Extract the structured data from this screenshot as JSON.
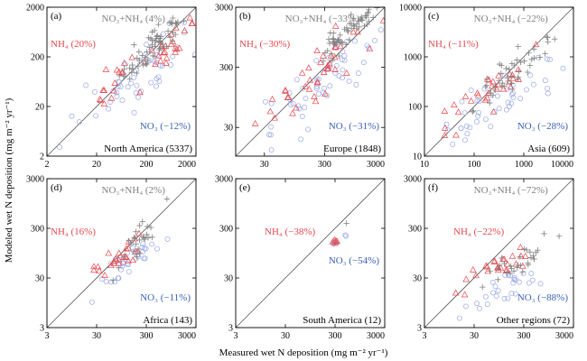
{
  "figure": {
    "y_axis_label": "Modeled wet N deposition (mg m⁻² yr⁻¹)",
    "x_axis_label": "Measured wet N deposition (mg m⁻² yr⁻¹)"
  },
  "colors": {
    "nh4": "#e8474c",
    "no3": "#3a5fb8",
    "sum": "#808080",
    "no3_marker": "#9aa8e6",
    "axis": "#000000",
    "one_to_one": "#555555"
  },
  "chart_data": [
    {
      "type": "scatter",
      "panel": "(a)",
      "region": "North America (5337)",
      "scale": "log",
      "xlim": [
        2,
        2000
      ],
      "ylim": [
        2,
        2000
      ],
      "xticks": [
        "2",
        "20",
        "200",
        "2000"
      ],
      "yticks": [
        "2",
        "20",
        "200",
        "2000"
      ],
      "one_to_one_line": true,
      "series": [
        {
          "name": "NO₃+NH₄",
          "bias": "(4%)",
          "marker": "plus",
          "label_position": "top",
          "clouds": [
            {
              "x_center": 300,
              "y_center": 350,
              "x_spread": 1.9,
              "y_spread": 1.9,
              "count": 60
            }
          ]
        },
        {
          "name": "NH₄",
          "bias": "(20%)",
          "marker": "triangle",
          "label_position": "upper-left",
          "clouds": [
            {
              "x_center": 180,
              "y_center": 150,
              "x_spread": 3.5,
              "y_spread": 2.5,
              "count": 40
            }
          ]
        },
        {
          "name": "NO₃",
          "bias": "(−12%)",
          "marker": "circle",
          "label_position": "lower-right",
          "clouds": [
            {
              "x_center": 120,
              "y_center": 70,
              "x_spread": 4.5,
              "y_spread": 3.2,
              "count": 55
            }
          ]
        }
      ]
    },
    {
      "type": "scatter",
      "panel": "(b)",
      "region": "Europe (1848)",
      "scale": "log",
      "xlim": [
        10,
        3000
      ],
      "ylim": [
        10,
        3000
      ],
      "xticks": [
        "30",
        "300",
        "3000"
      ],
      "yticks": [
        "30",
        "300",
        "3000"
      ],
      "one_to_one_line": true,
      "series": [
        {
          "name": "NO₃+NH₄",
          "bias": "(−33%)",
          "marker": "plus",
          "label_position": "top",
          "clouds": [
            {
              "x_center": 700,
              "y_center": 1100,
              "x_spread": 1.8,
              "y_spread": 1.8,
              "count": 60
            }
          ]
        },
        {
          "name": "NH₄",
          "bias": "(−30%)",
          "marker": "triangle",
          "label_position": "upper-left",
          "clouds": [
            {
              "x_center": 250,
              "y_center": 250,
              "x_spread": 2.8,
              "y_spread": 2.5,
              "count": 40
            }
          ]
        },
        {
          "name": "NO₃",
          "bias": "(−31%)",
          "marker": "circle",
          "label_position": "lower-right",
          "clouds": [
            {
              "x_center": 250,
              "y_center": 140,
              "x_spread": 3.2,
              "y_spread": 3.0,
              "count": 55
            }
          ]
        }
      ]
    },
    {
      "type": "scatter",
      "panel": "(c)",
      "region": "Asia (609)",
      "scale": "log",
      "xlim": [
        10,
        10000
      ],
      "ylim": [
        10,
        10000
      ],
      "xticks": [
        "10",
        "100",
        "1000",
        "10000"
      ],
      "yticks": [
        "10",
        "100",
        "1000",
        "10000"
      ],
      "one_to_one_line": true,
      "series": [
        {
          "name": "NO₃+NH₄",
          "bias": "(−22%)",
          "marker": "plus",
          "label_position": "top",
          "clouds": [
            {
              "x_center": 700,
              "y_center": 500,
              "x_spread": 2.5,
              "y_spread": 2.2,
              "count": 45
            }
          ]
        },
        {
          "name": "NH₄",
          "bias": "(−11%)",
          "marker": "triangle",
          "label_position": "upper-left",
          "clouds": [
            {
              "x_center": 300,
              "y_center": 250,
              "x_spread": 3.5,
              "y_spread": 2.5,
              "count": 30
            }
          ]
        },
        {
          "name": "NO₃",
          "bias": "(−28%)",
          "marker": "circle",
          "label_position": "lower-right",
          "clouds": [
            {
              "x_center": 250,
              "y_center": 120,
              "x_spread": 4.0,
              "y_spread": 2.5,
              "count": 45
            }
          ]
        }
      ]
    },
    {
      "type": "scatter",
      "panel": "(d)",
      "region": "Africa (143)",
      "scale": "log",
      "xlim": [
        3,
        3000
      ],
      "ylim": [
        3,
        3000
      ],
      "xticks": [
        "3",
        "30",
        "300",
        "3000"
      ],
      "yticks": [
        "3",
        "30",
        "300",
        "3000"
      ],
      "one_to_one_line": true,
      "series": [
        {
          "name": "NO₃+NH₄",
          "bias": "(2%)",
          "marker": "plus",
          "label_position": "top",
          "clouds": [
            {
              "x_center": 250,
              "y_center": 220,
              "x_spread": 1.8,
              "y_spread": 2.2,
              "count": 25
            }
          ]
        },
        {
          "name": "NH₄",
          "bias": "(16%)",
          "marker": "triangle",
          "label_position": "upper-left",
          "clouds": [
            {
              "x_center": 90,
              "y_center": 80,
              "x_spread": 1.9,
              "y_spread": 1.6,
              "count": 25
            }
          ]
        },
        {
          "name": "NO₃",
          "bias": "(−11%)",
          "marker": "circle",
          "label_position": "lower-right",
          "clouds": [
            {
              "x_center": 120,
              "y_center": 60,
              "x_spread": 2.0,
              "y_spread": 2.0,
              "count": 35
            }
          ]
        }
      ]
    },
    {
      "type": "scatter",
      "panel": "(e)",
      "region": "South America (12)",
      "scale": "log",
      "xlim": [
        3,
        3000
      ],
      "ylim": [
        3,
        3000
      ],
      "xticks": [
        "3",
        "30",
        "300",
        "3000"
      ],
      "yticks": [
        "3",
        "30",
        "300",
        "3000"
      ],
      "one_to_one_line": true,
      "series": [
        {
          "name": "NO₃+NH₄",
          "bias": "",
          "marker": "plus",
          "label_position": "none",
          "points": [
            [
              510,
              380
            ]
          ]
        },
        {
          "name": "NH₄",
          "bias": "(−38%)",
          "marker": "triangle",
          "label_position": "upper-left",
          "points": [
            [
              270,
              160
            ],
            [
              290,
              175
            ],
            [
              310,
              170
            ],
            [
              300,
              155
            ],
            [
              330,
              165
            ]
          ]
        },
        {
          "name": "NO₃",
          "bias": "(−54%)",
          "marker": "circle",
          "label_position": "lower-right",
          "points": [
            [
              280,
              145
            ],
            [
              300,
              160
            ],
            [
              320,
              150
            ],
            [
              480,
              220
            ],
            [
              500,
              210
            ],
            [
              290,
              150
            ]
          ]
        }
      ]
    },
    {
      "type": "scatter",
      "panel": "(f)",
      "region": "Other regions (72)",
      "scale": "log",
      "xlim": [
        3,
        3000
      ],
      "ylim": [
        3,
        3000
      ],
      "xticks": [
        "3",
        "30",
        "300",
        "3000"
      ],
      "yticks": [
        "3",
        "30",
        "300",
        "3000"
      ],
      "one_to_one_line": true,
      "series": [
        {
          "name": "NO₃+NH₄",
          "bias": "(−72%)",
          "marker": "plus",
          "label_position": "top",
          "clouds": [
            {
              "x_center": 200,
              "y_center": 55,
              "x_spread": 2.2,
              "y_spread": 1.7,
              "count": 30
            }
          ]
        },
        {
          "name": "NH₄",
          "bias": "(−22%)",
          "marker": "triangle",
          "label_position": "upper-left",
          "clouds": [
            {
              "x_center": 70,
              "y_center": 45,
              "x_spread": 2.3,
              "y_spread": 1.6,
              "count": 25
            }
          ]
        },
        {
          "name": "NO₃",
          "bias": "(−88%)",
          "marker": "circle",
          "label_position": "lower-right",
          "clouds": [
            {
              "x_center": 130,
              "y_center": 20,
              "x_spread": 2.5,
              "y_spread": 1.8,
              "count": 28
            }
          ]
        }
      ]
    }
  ]
}
